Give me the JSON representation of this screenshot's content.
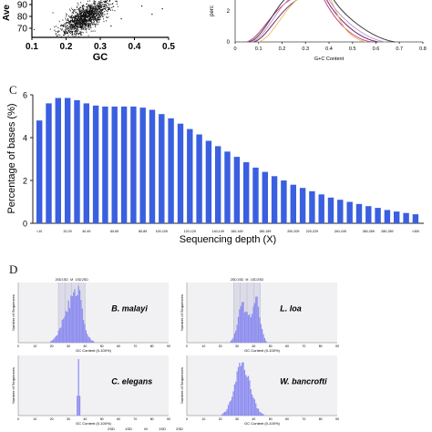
{
  "panels": {
    "C": "C",
    "D": "D"
  },
  "colors": {
    "bar": "#3a5fe0",
    "hist": "#8c8cf0",
    "scatter": "#111111",
    "curve_colors": [
      "#6b2a6f",
      "#c9407d",
      "#e9c36a",
      "#c49ad6",
      "#3b3b3b"
    ]
  },
  "chart_data": [
    {
      "id": "A",
      "type": "scatter",
      "xlabel": "GC",
      "ylabel": "Ave",
      "x_ticks": [
        "0.1",
        "0.2",
        "0.3",
        "0.4",
        "0.5"
      ],
      "y_ticks": [
        "90",
        "80",
        "70"
      ],
      "xlim": [
        0.1,
        0.5
      ],
      "description_points": "dense cloud centered near GC 0.23-0.3"
    },
    {
      "id": "B",
      "type": "line",
      "xlabel": "G+C Content",
      "ylabel": "perc",
      "x_ticks": [
        "0",
        "0.1",
        "0.2",
        "0.3",
        "0.4",
        "0.5",
        "0.6",
        "0.7",
        "0.8"
      ],
      "y_ticks": [
        "2",
        "0"
      ],
      "xlim": [
        0,
        0.8
      ]
    },
    {
      "id": "C",
      "type": "bar",
      "ylabel": "Percentage of bases (%)",
      "xlabel": "Sequencing depth (X)",
      "ylim": [
        0,
        6
      ],
      "y_ticks": [
        "0",
        "2",
        "4",
        "6"
      ],
      "categories": [
        "<10",
        "10-20",
        "20-30",
        "30-40",
        "40-50",
        "50-60",
        "60-70",
        "70-80",
        "80-90",
        "90-100",
        "100-110",
        "110-120",
        "120-130",
        "130-140",
        "140-150",
        "150-160",
        "160-170",
        "170-180",
        "180-190",
        "190-200",
        "200-210",
        "210-220",
        "220-230",
        "230-240",
        "240-250",
        "250-260",
        "260-270",
        "270-280",
        "280-290",
        "290-300",
        "300-310",
        "310-320",
        "320-330",
        "330-340",
        "340-350",
        "350-360",
        "360-370",
        "370-380",
        "380-390",
        "390-400",
        ">400"
      ],
      "x_tick_labels": [
        "<10",
        "20-29",
        "40-49",
        "60-69",
        "80-89",
        "100-109",
        "120-129",
        "140-149",
        "160-169",
        "180-189",
        "200-209",
        "220-229",
        "240-249",
        "260-269",
        "280-289",
        ">300"
      ],
      "values": [
        4.8,
        5.6,
        5.85,
        5.85,
        5.75,
        5.6,
        5.5,
        5.45,
        5.45,
        5.45,
        5.45,
        5.4,
        5.3,
        5.1,
        4.9,
        4.65,
        4.4,
        4.15,
        3.85,
        3.6,
        3.35,
        3.1,
        2.85,
        2.6,
        2.4,
        2.2,
        2.0,
        1.8,
        1.65,
        1.5,
        1.35,
        1.2,
        1.1,
        1.0,
        0.9,
        0.8,
        0.72,
        0.62,
        0.55,
        0.48,
        0.42
      ]
    },
    {
      "id": "D",
      "type": "histogram",
      "ylabel": "Number of Sequences",
      "xlabel": "GC Content (0-100%)",
      "x_ticks": [
        "0",
        "10",
        "20",
        "30",
        "40",
        "50",
        "60",
        "70",
        "80",
        "90"
      ],
      "stat_labels": [
        "2SD",
        "1SD",
        "M",
        "1SD",
        "2SD"
      ],
      "species": [
        "B. malayi",
        "L. loa",
        "C. elegans",
        "W. bancrofti"
      ]
    }
  ]
}
